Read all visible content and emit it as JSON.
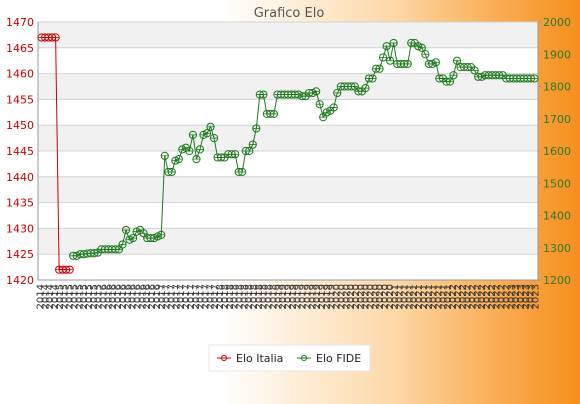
{
  "chart_data": {
    "type": "line",
    "title": "Grafico Elo",
    "xlabel": "",
    "ylabel_left": "",
    "ylabel_right": "",
    "left_axis": {
      "ylim": [
        1420,
        1470
      ],
      "ticks": [
        "1420",
        "1425",
        "1430",
        "1435",
        "1440",
        "1445",
        "1450",
        "1455",
        "1460",
        "1465",
        "1470"
      ],
      "color": "#cc0000"
    },
    "right_axis": {
      "ylim": [
        1200,
        2000
      ],
      "ticks": [
        "1200",
        "1300",
        "1400",
        "1500",
        "1600",
        "1700",
        "1800",
        "1900",
        "2000"
      ],
      "color": "#2a7a2a"
    },
    "grid": true,
    "legend_position": "bottom-center",
    "x_tick_labels": [
      "2014",
      "2014",
      "2014",
      "2014",
      "2015",
      "2015",
      "2015",
      "2015",
      "2015",
      "2015",
      "2015",
      "2015",
      "2015",
      "2016",
      "2016",
      "2016",
      "2016",
      "2016",
      "2016",
      "2016",
      "2016",
      "2016",
      "2016",
      "2016",
      "2016",
      "2017",
      "2017",
      "2017",
      "2017",
      "2017",
      "2017",
      "2017",
      "2017",
      "2017",
      "2017",
      "2017",
      "2017",
      "2018",
      "2018",
      "2018",
      "2018",
      "2018",
      "2018",
      "2018",
      "2018",
      "2018",
      "2018",
      "2018",
      "2018",
      "2019",
      "2019",
      "2019",
      "2019",
      "2019",
      "2019",
      "2019",
      "2019",
      "2019",
      "2019",
      "2019",
      "2019",
      "2020",
      "2020",
      "2020",
      "2020",
      "2020",
      "2020",
      "2020",
      "2020",
      "2020",
      "2020",
      "2020",
      "2020",
      "2021",
      "2021",
      "2021",
      "2021",
      "2021",
      "2021",
      "2021",
      "2021",
      "2021",
      "2021",
      "2021",
      "2021",
      "2022",
      "2022",
      "2022",
      "2022",
      "2022",
      "2022",
      "2022",
      "2022",
      "2022",
      "2022",
      "2022",
      "2022",
      "2023",
      "2023",
      "2023",
      "2023",
      "2023",
      "2023"
    ],
    "series": [
      {
        "name": "Elo Italia",
        "axis": "left",
        "color": "#cc0000",
        "values": [
          1467,
          1467,
          1467,
          1467,
          1467,
          1422,
          1422,
          1422,
          1422
        ]
      },
      {
        "name": "Elo FIDE",
        "axis": "right",
        "color": "#1e7a1e",
        "values": [
          null,
          null,
          null,
          null,
          null,
          null,
          null,
          null,
          null,
          1275,
          1275,
          1280,
          1280,
          1282,
          1283,
          1283,
          1285,
          1295,
          1295,
          1295,
          1295,
          1295,
          1295,
          1310,
          1355,
          1325,
          1330,
          1350,
          1355,
          1345,
          1330,
          1330,
          1330,
          1335,
          1340,
          1585,
          1535,
          1535,
          1570,
          1575,
          1605,
          1610,
          1600,
          1650,
          1575,
          1605,
          1650,
          1655,
          1675,
          1640,
          1580,
          1580,
          1580,
          1590,
          1590,
          1590,
          1535,
          1535,
          1600,
          1600,
          1620,
          1670,
          1775,
          1775,
          1715,
          1715,
          1715,
          1775,
          1775,
          1775,
          1775,
          1775,
          1775,
          1775,
          1770,
          1770,
          1780,
          1780,
          1785,
          1745,
          1705,
          1720,
          1725,
          1735,
          1780,
          1800,
          1800,
          1800,
          1800,
          1800,
          1785,
          1785,
          1795,
          1825,
          1825,
          1855,
          1855,
          1890,
          1925,
          1880,
          1935,
          1870,
          1870,
          1870,
          1870,
          1935,
          1935,
          1925,
          1920,
          1900,
          1870,
          1870,
          1875,
          1825,
          1825,
          1815,
          1815,
          1835,
          1880,
          1860,
          1860,
          1860,
          1860,
          1850,
          1830,
          1830,
          1835,
          1835,
          1835,
          1835,
          1835,
          1835,
          1825,
          1825,
          1825,
          1825,
          1825,
          1825,
          1825,
          1825,
          1825
        ]
      }
    ]
  }
}
